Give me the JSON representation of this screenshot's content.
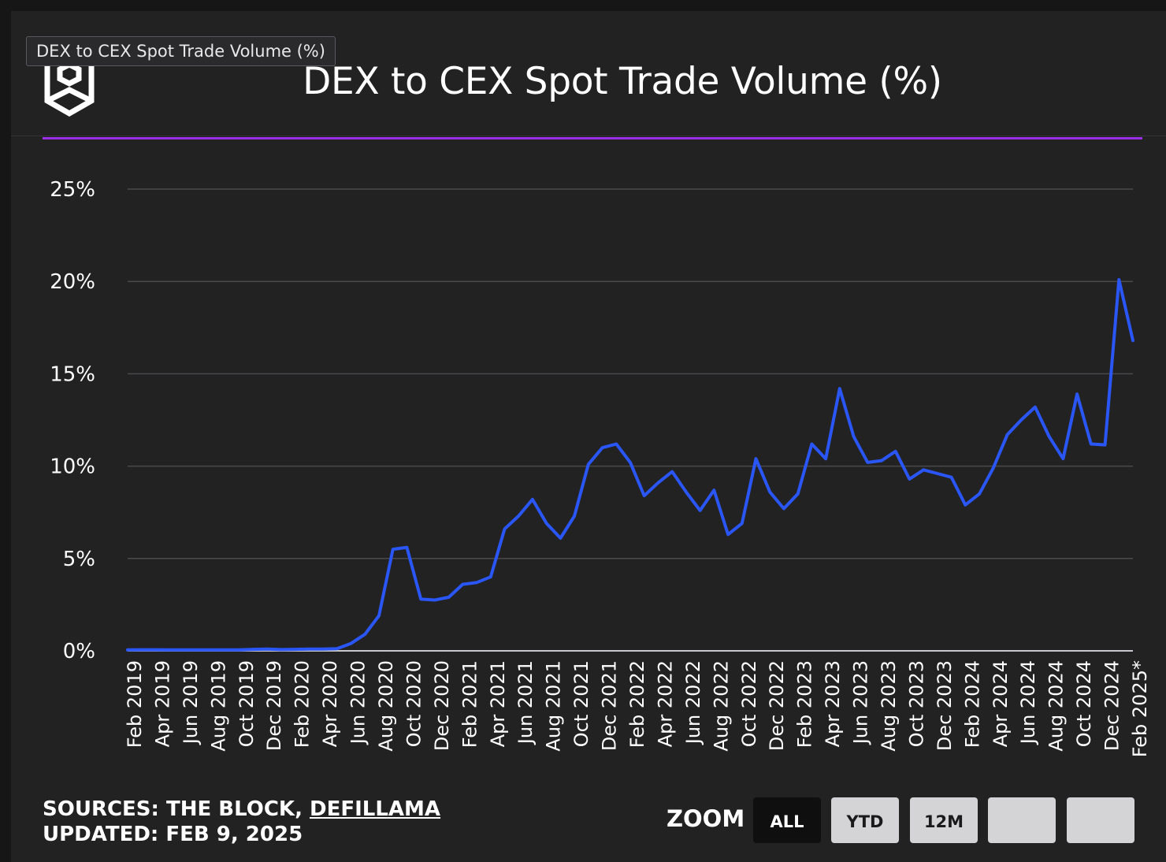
{
  "header": {
    "tooltip": "DEX to CEX Spot Trade Volume (%)",
    "title": "DEX to CEX Spot Trade Volume (%)",
    "logo_icon": "the-block-cube-logo-icon"
  },
  "colors": {
    "background": "#222223",
    "accent_divider": "#9b2ee8",
    "series_line": "#2a56f5",
    "grid": "#4a4a4c",
    "text": "#ffffff"
  },
  "footer": {
    "sources_prefix": "SOURCES: THE BLOCK, ",
    "sources_link": "DEFILLAMA",
    "updated": "UPDATED: FEB 9, 2025",
    "zoom_label": "ZOOM",
    "zoom_buttons": [
      {
        "label": "ALL",
        "active": true
      },
      {
        "label": "YTD",
        "active": false
      },
      {
        "label": "12M",
        "active": false
      },
      {
        "label": "",
        "active": false
      },
      {
        "label": "",
        "active": false
      }
    ]
  },
  "chart_data": {
    "type": "line",
    "title": "DEX to CEX Spot Trade Volume (%)",
    "xlabel": "",
    "ylabel": "",
    "y_unit": "%",
    "ylim": [
      0,
      25
    ],
    "y_ticks": [
      "0%",
      "5%",
      "10%",
      "15%",
      "20%",
      "25%"
    ],
    "grid": true,
    "legend": "none",
    "x_tick_labels": [
      "Feb 2019",
      "Apr 2019",
      "Jun 2019",
      "Aug 2019",
      "Oct 2019",
      "Dec 2019",
      "Feb 2020",
      "Apr 2020",
      "Jun 2020",
      "Aug 2020",
      "Oct 2020",
      "Dec 2020",
      "Feb 2021",
      "Apr 2021",
      "Jun 2021",
      "Aug 2021",
      "Oct 2021",
      "Dec 2021",
      "Feb 2022",
      "Apr 2022",
      "Jun 2022",
      "Aug 2022",
      "Oct 2022",
      "Dec 2022",
      "Feb 2023",
      "Apr 2023",
      "Jun 2023",
      "Aug 2023",
      "Oct 2023",
      "Dec 2023",
      "Feb 2024",
      "Apr 2024",
      "Jun 2024",
      "Aug 2024",
      "Oct 2024",
      "Dec 2024",
      "Feb 2025*"
    ],
    "x": [
      "Feb 2019",
      "Mar 2019",
      "Apr 2019",
      "May 2019",
      "Jun 2019",
      "Jul 2019",
      "Aug 2019",
      "Sep 2019",
      "Oct 2019",
      "Nov 2019",
      "Dec 2019",
      "Jan 2020",
      "Feb 2020",
      "Mar 2020",
      "Apr 2020",
      "May 2020",
      "Jun 2020",
      "Jul 2020",
      "Aug 2020",
      "Sep 2020",
      "Oct 2020",
      "Nov 2020",
      "Dec 2020",
      "Jan 2021",
      "Feb 2021",
      "Mar 2021",
      "Apr 2021",
      "May 2021",
      "Jun 2021",
      "Jul 2021",
      "Aug 2021",
      "Sep 2021",
      "Oct 2021",
      "Nov 2021",
      "Dec 2021",
      "Jan 2022",
      "Feb 2022",
      "Mar 2022",
      "Apr 2022",
      "May 2022",
      "Jun 2022",
      "Jul 2022",
      "Aug 2022",
      "Sep 2022",
      "Oct 2022",
      "Nov 2022",
      "Dec 2022",
      "Jan 2023",
      "Feb 2023",
      "Mar 2023",
      "Apr 2023",
      "May 2023",
      "Jun 2023",
      "Jul 2023",
      "Aug 2023",
      "Sep 2023",
      "Oct 2023",
      "Nov 2023",
      "Dec 2023",
      "Jan 2024",
      "Feb 2024",
      "Mar 2024",
      "Apr 2024",
      "May 2024",
      "Jun 2024",
      "Jul 2024",
      "Aug 2024",
      "Sep 2024",
      "Oct 2024",
      "Nov 2024",
      "Dec 2024",
      "Jan 2025",
      "Feb 2025*"
    ],
    "series": [
      {
        "values": [
          0.05,
          0.06,
          0.06,
          0.05,
          0.05,
          0.05,
          0.05,
          0.05,
          0.05,
          0.08,
          0.1,
          0.07,
          0.08,
          0.1,
          0.1,
          0.12,
          0.4,
          0.9,
          1.9,
          5.5,
          5.6,
          2.8,
          2.75,
          2.9,
          3.6,
          3.7,
          4.0,
          6.6,
          7.3,
          8.2,
          6.9,
          6.1,
          7.3,
          10.1,
          11.0,
          11.2,
          10.2,
          8.4,
          9.1,
          9.7,
          8.6,
          7.6,
          8.7,
          6.3,
          6.9,
          10.4,
          8.6,
          7.7,
          8.5,
          11.2,
          10.4,
          14.2,
          11.6,
          10.2,
          10.3,
          10.8,
          9.3,
          9.8,
          9.6,
          9.4,
          7.9,
          8.5,
          9.9,
          11.7,
          12.5,
          13.2,
          11.6,
          10.4,
          13.9,
          11.2,
          11.15,
          20.1,
          16.8
        ]
      }
    ]
  }
}
